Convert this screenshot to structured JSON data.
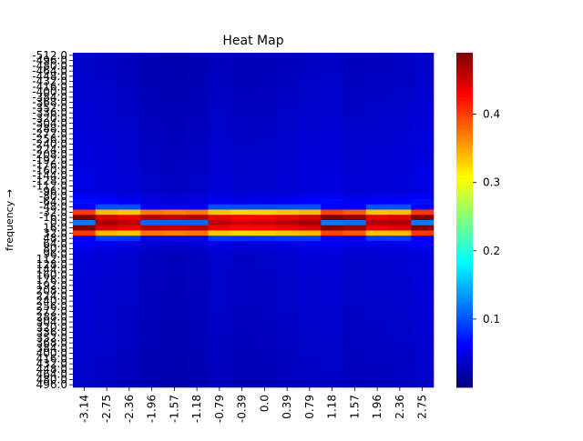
{
  "chart_data": {
    "type": "heatmap",
    "title": "Heat Map",
    "ylabel": "frequency  →",
    "xlabel": "",
    "x_tick_labels": [
      "-3.14",
      "-2.75",
      "-2.36",
      "-1.96",
      "-1.57",
      "-1.18",
      "-0.79",
      "-0.39",
      "0.0",
      "0.39",
      "0.79",
      "1.18",
      "1.57",
      "1.96",
      "2.36",
      "2.75"
    ],
    "y_tick_labels": [
      "-512.0",
      "-496.0",
      "-480.0",
      "-464.0",
      "-448.0",
      "-432.0",
      "-416.0",
      "-400.0",
      "-384.0",
      "-368.0",
      "-352.0",
      "-336.0",
      "-320.0",
      "-304.0",
      "-288.0",
      "-272.0",
      "-256.0",
      "-240.0",
      "-224.0",
      "-208.0",
      "-192.0",
      "-176.0",
      "-160.0",
      "-144.0",
      "-128.0",
      "-112.0",
      "-96.0",
      "-80.0",
      "-64.0",
      "-48.0",
      "-32.0",
      "-16.0",
      "0.0",
      "16.0",
      "32.0",
      "48.0",
      "64.0",
      "80.0",
      "96.0",
      "112.0",
      "128.0",
      "144.0",
      "160.0",
      "176.0",
      "192.0",
      "208.0",
      "224.0",
      "240.0",
      "256.0",
      "272.0",
      "288.0",
      "304.0",
      "320.0",
      "336.0",
      "352.0",
      "368.0",
      "384.0",
      "400.0",
      "416.0",
      "432.0",
      "448.0",
      "464.0",
      "480.0",
      "496.0"
    ],
    "rows": 64,
    "cols": 16,
    "colorbar": {
      "colormap": "jet",
      "vmin": 0.0,
      "vmax": 0.49,
      "ticks": [
        "0.1",
        "0.2",
        "0.3",
        "0.4"
      ]
    },
    "profiles": {
      "row_levels_col_avg": {
        "-512.0": 0.035,
        "-496.0": 0.035,
        "-96.0": 0.05,
        "-64.0": 0.07,
        "-48.0": 0.15,
        "-32.0": 0.32,
        "-16.0": 0.38,
        "0.0": 0.42,
        "16.0": 0.38,
        "32.0": 0.32,
        "48.0": 0.13,
        "64.0": 0.06,
        "96.0": 0.045,
        "496.0": 0.035
      },
      "column_factor": [
        0.97,
        0.9,
        0.82,
        0.7,
        0.65,
        0.7,
        0.83,
        0.75,
        0.77,
        0.83,
        0.9,
        0.93,
        0.82,
        0.85,
        0.88,
        0.98
      ],
      "column_phase": [
        "narrow",
        "wide",
        "wide",
        "narrow",
        "narrow",
        "narrow",
        "wide",
        "wide",
        "wide",
        "wide",
        "wide",
        "narrow",
        "narrow",
        "wide",
        "wide",
        "narrow"
      ]
    }
  }
}
